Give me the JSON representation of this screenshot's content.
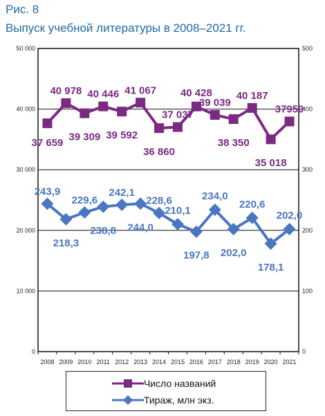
{
  "figure": {
    "label": "Рис. 8",
    "title": "Выпуск учебной литературы в 2008–2021 гг."
  },
  "colors": {
    "titles_series": "#7a2a82",
    "circulation_series": "#4a76c2",
    "figure_text": "#1f6aa5"
  },
  "chart_data": {
    "type": "line",
    "x": [
      "2008",
      "2009",
      "2010",
      "2011",
      "2012",
      "2013",
      "2014",
      "2015",
      "2016",
      "2017",
      "2018",
      "2019",
      "2020",
      "2021"
    ],
    "y_left": {
      "ylim": [
        0,
        50000
      ],
      "ticks": [
        "0",
        "10 000",
        "20 000",
        "30 000",
        "40 000",
        "50 000"
      ]
    },
    "y_right": {
      "ylim": [
        0,
        500
      ],
      "ticks": [
        "0",
        "100",
        "200",
        "300",
        "400",
        "500"
      ]
    },
    "grid": "horizontal",
    "legend": "bottom",
    "series": [
      {
        "name": "Число названий",
        "axis": "left",
        "marker": "square",
        "values": [
          37659,
          40978,
          39309,
          40446,
          39592,
          41067,
          36860,
          37037,
          40428,
          39039,
          38350,
          40187,
          35018,
          37959
        ],
        "labels": [
          "37 659",
          "40 978",
          "39 309",
          "40 446",
          "39 592",
          "41 067",
          "36 860",
          "37 037",
          "40 428",
          "39 039",
          "38 350",
          "40 187",
          "35 018",
          "37959"
        ]
      },
      {
        "name": "Тираж, млн экз.",
        "axis": "right",
        "marker": "diamond",
        "values": [
          243.9,
          218.3,
          229.6,
          238.8,
          242.1,
          244.0,
          228.6,
          210.1,
          197.8,
          234.0,
          202.0,
          220.6,
          178.1,
          202.0
        ],
        "labels": [
          "243,9",
          "218,3",
          "229,6",
          "238,8",
          "242,1",
          "244,0",
          "228,6",
          "210,1",
          "197,8",
          "234,0",
          "202,0",
          "220,6",
          "178,1",
          "202,0"
        ]
      }
    ]
  }
}
